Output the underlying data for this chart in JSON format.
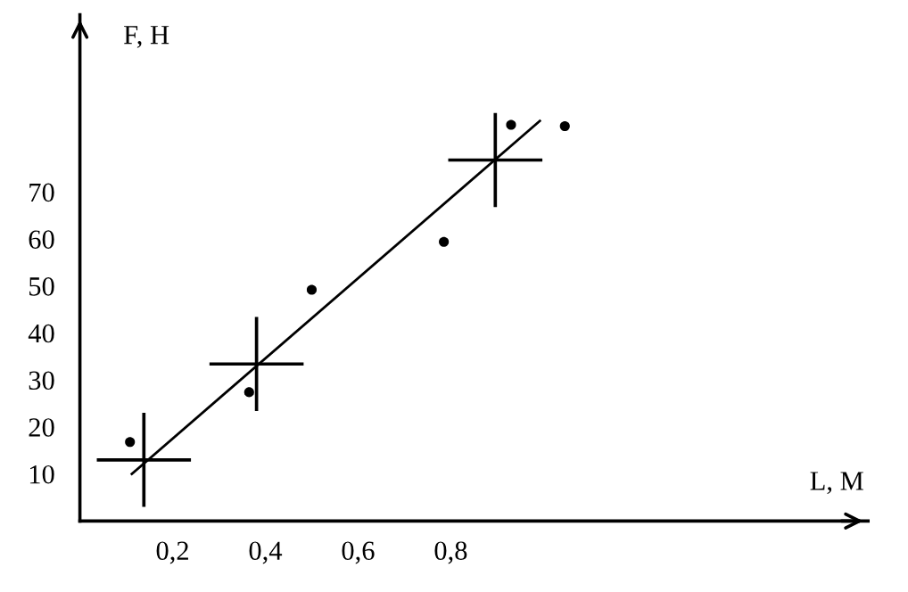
{
  "chart_data": {
    "type": "scatter",
    "xlabel": "L, M",
    "ylabel": "F, H",
    "xlim": [
      0,
      1.7
    ],
    "ylim": [
      0,
      107.7
    ],
    "xticks": [
      {
        "value": 0.2,
        "label": "0,2"
      },
      {
        "value": 0.4,
        "label": "0,4"
      },
      {
        "value": 0.6,
        "label": "0,6"
      },
      {
        "value": 0.8,
        "label": "0,8"
      }
    ],
    "yticks": [
      10,
      20,
      30,
      40,
      50,
      60,
      70
    ],
    "grid": false,
    "legend": false,
    "series": [
      {
        "marker": "circle",
        "color": "#000000",
        "x": [
          0.108,
          0.365,
          0.5,
          0.785,
          0.93,
          1.046
        ],
        "values": [
          16.8,
          27.4,
          49.2,
          59.4,
          84.3,
          84.0
        ]
      },
      {
        "type": "scatter",
        "marker": "cross",
        "color": "#000000",
        "x": [
          0.138,
          0.381,
          0.896
        ],
        "values": [
          13.0,
          33.4,
          76.8
        ]
      },
      {
        "type": "line",
        "marker": "none",
        "line_style": "solid",
        "color": "#000000",
        "x": [
          0.112,
          0.992
        ],
        "values": [
          10.0,
          85.1
        ]
      }
    ]
  }
}
